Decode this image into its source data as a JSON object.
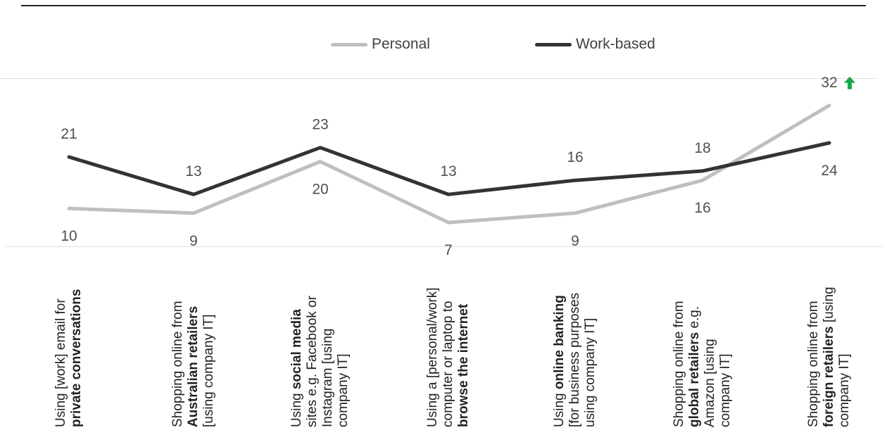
{
  "chart_data": {
    "type": "line",
    "title": "",
    "xlabel": "",
    "ylabel": "",
    "categories": [
      [
        {
          "t": "Using [work] email for",
          "b": false
        },
        {
          "t": "private conversations",
          "b": true
        }
      ],
      [
        {
          "t": "Shopping online from",
          "b": false
        },
        {
          "t": "Australian retailers",
          "b": true
        },
        {
          "t": "[using company IT]",
          "b": false
        }
      ],
      [
        {
          "t": "Using ",
          "b": false
        },
        {
          "t": "social media",
          "b": true
        },
        {
          "t": "sites e.g. Facebook or",
          "b": false
        },
        {
          "t": "Instagram [using",
          "b": false
        },
        {
          "t": "company IT]",
          "b": false
        }
      ],
      [
        {
          "t": "Using a [personal/work]",
          "b": false
        },
        {
          "t": "computer or laptop to",
          "b": false
        },
        {
          "t": "browse the internet",
          "b": true
        }
      ],
      [
        {
          "t": "Using ",
          "b": false
        },
        {
          "t": "online banking",
          "b": true
        },
        {
          "t": "[for business purposes",
          "b": false
        },
        {
          "t": "using company IT]",
          "b": false
        }
      ],
      [
        {
          "t": "Shopping online from",
          "b": false
        },
        {
          "t": "global retailers",
          "b": true
        },
        {
          "t": " e.g.",
          "b": false
        },
        {
          "t": "Amazon [using",
          "b": false
        },
        {
          "t": "company IT]",
          "b": false
        }
      ],
      [
        {
          "t": "Shopping online from",
          "b": false
        },
        {
          "t": "foreign retailers",
          "b": true
        },
        {
          "t": " [using",
          "b": false
        },
        {
          "t": "company IT]",
          "b": false
        }
      ]
    ],
    "series": [
      {
        "name": "Personal",
        "color": "#bfbfbf",
        "values": [
          10,
          9,
          20,
          7,
          9,
          16,
          32
        ]
      },
      {
        "name": "Work-based",
        "color": "#333333",
        "values": [
          21,
          13,
          23,
          13,
          16,
          18,
          24
        ]
      }
    ],
    "ylim": [
      0,
      40
    ],
    "grid": false,
    "legend_position": "top-center",
    "annotations": [
      {
        "category_index": 6,
        "series": "Personal",
        "icon": "up-arrow-icon",
        "color": "#1aa84a"
      }
    ]
  }
}
